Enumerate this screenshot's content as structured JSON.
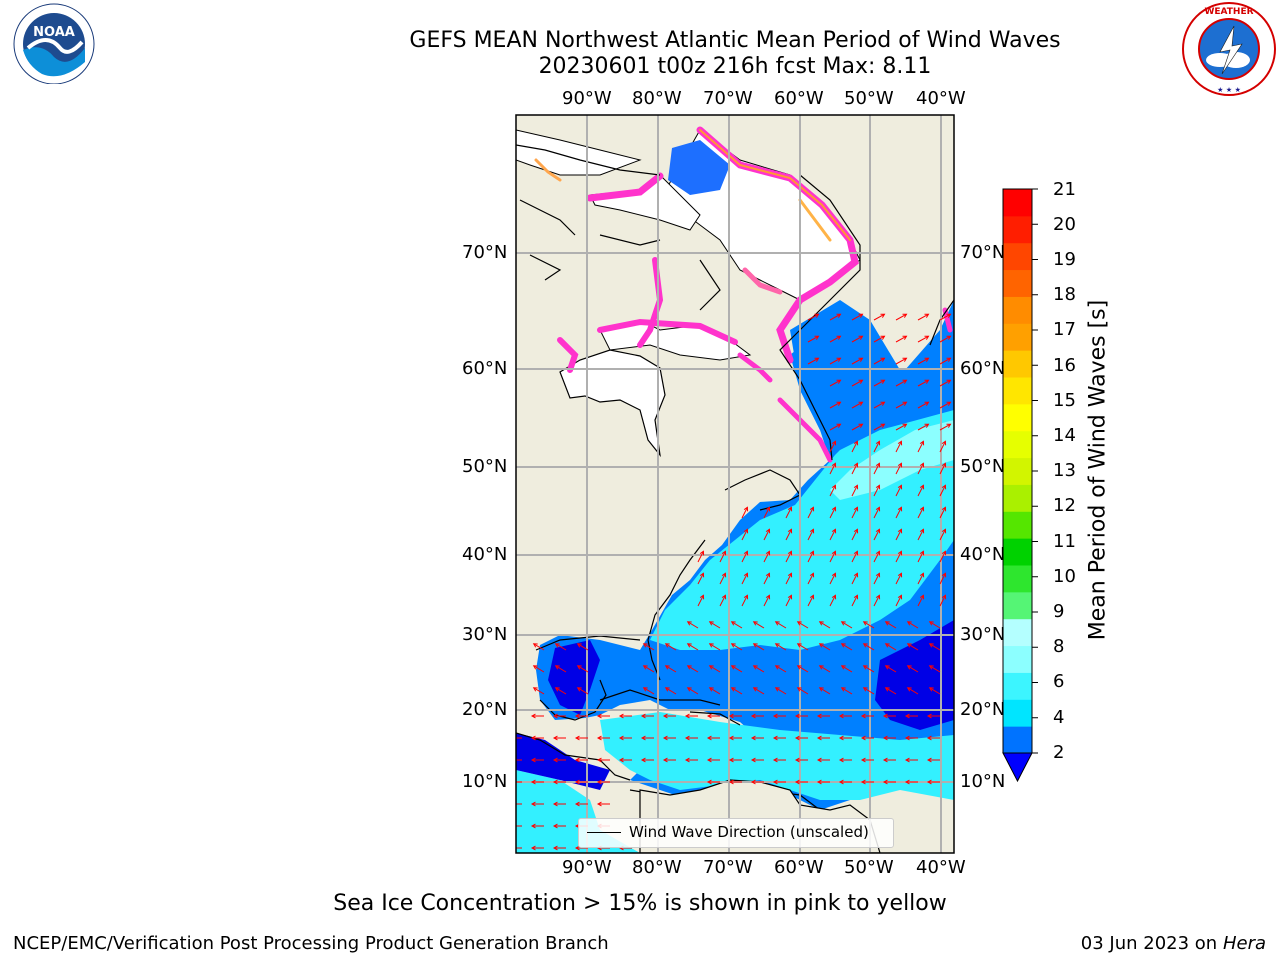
{
  "header": {
    "title": "GEFS MEAN Northwest Atlantic Mean Period of Wind Waves",
    "subtitle": "20230601 t00z 216h fcst   Max: 8.11"
  },
  "logos": {
    "left": {
      "icon": "noaa-logo",
      "text": "NOAA",
      "ring_text": "NATIONAL OCEANIC AND ATMOSPHERIC ADMINISTRATION · U.S. DEPARTMENT OF COMMERCE"
    },
    "right": {
      "icon": "nws-logo",
      "ring_text": "NATIONAL WEATHER SERVICE"
    }
  },
  "map": {
    "lon_labels": [
      "90°W",
      "80°W",
      "70°W",
      "60°W",
      "50°W",
      "40°W"
    ],
    "lat_labels": [
      "70°N",
      "60°N",
      "50°N",
      "40°N",
      "30°N",
      "20°N",
      "10°N"
    ],
    "legend_label": "Wind Wave Direction (unscaled)",
    "colors": {
      "land": "#efedde",
      "ice_free_unmasked": "#ffffff",
      "arrow": "#ff0000",
      "grid": "#b0b0b0"
    }
  },
  "colorbar": {
    "label": "Mean Period of Wind Waves [s]",
    "ticks": [
      "21",
      "20",
      "19",
      "18",
      "17",
      "16",
      "15",
      "14",
      "13",
      "12",
      "11",
      "10",
      "9",
      "8",
      "6",
      "4",
      "2"
    ],
    "colors_bottom_to_top": [
      "#0073ff",
      "#00e5ff",
      "#3cf5ff",
      "#8cffff",
      "#b4ffff",
      "#55f575",
      "#2ee62e",
      "#00d200",
      "#55e600",
      "#aaf000",
      "#d2f500",
      "#e6ff00",
      "#ffff00",
      "#ffe600",
      "#ffc800",
      "#ffa000",
      "#ff8c00",
      "#ff6400",
      "#ff4600",
      "#ff1e00",
      "#ff0000"
    ],
    "extend_color": "#0000ff"
  },
  "footer": {
    "ice_note": "Sea Ice Concentration > 15% is shown in pink to yellow",
    "credit": "NCEP/EMC/Verification Post Processing Product Generation Branch",
    "date": "03 Jun 2023 on",
    "host": "Hera"
  }
}
